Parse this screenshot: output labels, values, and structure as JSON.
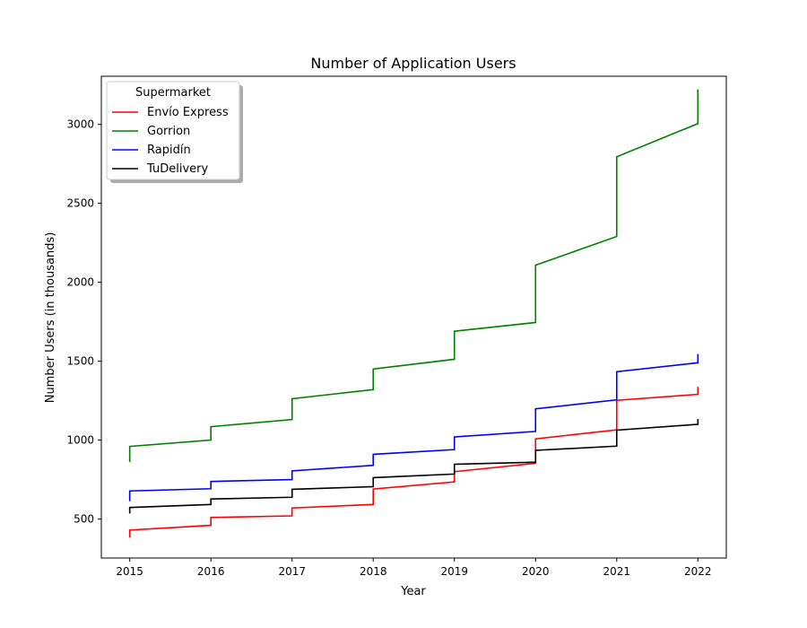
{
  "chart_data": {
    "type": "line",
    "title": "Number of Application Users",
    "xlabel": "Year",
    "ylabel": "Number Users (in thousands)",
    "xlim": [
      2014.65,
      2022.35
    ],
    "ylim": [
      253,
      3305
    ],
    "xticks": [
      2015,
      2016,
      2017,
      2018,
      2019,
      2020,
      2021,
      2022
    ],
    "yticks": [
      500,
      1000,
      1500,
      2000,
      2500,
      3000
    ],
    "grid": false,
    "legend": {
      "title": "Supermarket",
      "position": "top-left"
    },
    "series": [
      {
        "name": "Envío Express",
        "color": "#ff0000",
        "points": [
          [
            2015,
            383
          ],
          [
            2015,
            430
          ],
          [
            2016,
            460
          ],
          [
            2016,
            510
          ],
          [
            2017,
            520
          ],
          [
            2017,
            570
          ],
          [
            2018,
            592
          ],
          [
            2018,
            690
          ],
          [
            2019,
            735
          ],
          [
            2019,
            800
          ],
          [
            2020,
            853
          ],
          [
            2020,
            1008
          ],
          [
            2021,
            1065
          ],
          [
            2021,
            1252
          ],
          [
            2022,
            1290
          ],
          [
            2022,
            1338
          ]
        ]
      },
      {
        "name": "Gorrion",
        "color": "#008000",
        "points": [
          [
            2015,
            862
          ],
          [
            2015,
            960
          ],
          [
            2016,
            1000
          ],
          [
            2016,
            1085
          ],
          [
            2017,
            1130
          ],
          [
            2017,
            1262
          ],
          [
            2018,
            1320
          ],
          [
            2018,
            1450
          ],
          [
            2019,
            1512
          ],
          [
            2019,
            1690
          ],
          [
            2020,
            1745
          ],
          [
            2020,
            2108
          ],
          [
            2021,
            2290
          ],
          [
            2021,
            2795
          ],
          [
            2022,
            3005
          ],
          [
            2022,
            3222
          ]
        ]
      },
      {
        "name": "Rapidín",
        "color": "#0000ff",
        "points": [
          [
            2015,
            613
          ],
          [
            2015,
            678
          ],
          [
            2016,
            692
          ],
          [
            2016,
            738
          ],
          [
            2017,
            750
          ],
          [
            2017,
            805
          ],
          [
            2018,
            840
          ],
          [
            2018,
            910
          ],
          [
            2019,
            940
          ],
          [
            2019,
            1020
          ],
          [
            2020,
            1055
          ],
          [
            2020,
            1198
          ],
          [
            2021,
            1255
          ],
          [
            2021,
            1433
          ],
          [
            2022,
            1490
          ],
          [
            2022,
            1545
          ]
        ]
      },
      {
        "name": "TuDelivery",
        "color": "#000000",
        "points": [
          [
            2015,
            535
          ],
          [
            2015,
            573
          ],
          [
            2016,
            592
          ],
          [
            2016,
            627
          ],
          [
            2017,
            638
          ],
          [
            2017,
            688
          ],
          [
            2018,
            705
          ],
          [
            2018,
            762
          ],
          [
            2019,
            785
          ],
          [
            2019,
            847
          ],
          [
            2020,
            860
          ],
          [
            2020,
            935
          ],
          [
            2021,
            962
          ],
          [
            2021,
            1063
          ],
          [
            2022,
            1100
          ],
          [
            2022,
            1133
          ]
        ]
      }
    ]
  }
}
